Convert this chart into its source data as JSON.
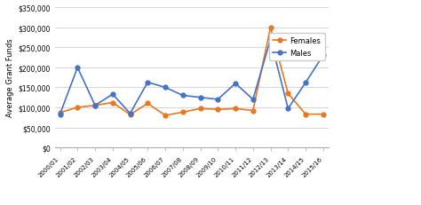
{
  "categories": [
    "2000/01",
    "2001/02",
    "2002/03",
    "2003/04",
    "2004/05",
    "2005/06",
    "2006/07",
    "2007/08",
    "2008/09",
    "2009/10",
    "2010/11",
    "2011/12",
    "2012/13",
    "2013/14",
    "2014/15",
    "2015/16"
  ],
  "females": [
    87000,
    100000,
    105000,
    112000,
    82000,
    110000,
    80000,
    88000,
    97000,
    95000,
    97000,
    92000,
    300000,
    135000,
    83000,
    83000
  ],
  "males": [
    83000,
    200000,
    105000,
    133000,
    85000,
    163000,
    150000,
    130000,
    125000,
    120000,
    160000,
    120000,
    270000,
    97000,
    162000,
    230000
  ],
  "females_color": "#E87722",
  "males_color": "#4472C4",
  "ylabel": "Average Grant Funds",
  "ylim": [
    0,
    350000
  ],
  "yticks": [
    0,
    50000,
    100000,
    150000,
    200000,
    250000,
    300000,
    350000
  ],
  "legend_labels": [
    "Females",
    "Males"
  ],
  "marker": "o",
  "markersize": 3.5,
  "linewidth": 1.2,
  "grid_color": "#d0d0d0",
  "bg_color": "#ffffff"
}
